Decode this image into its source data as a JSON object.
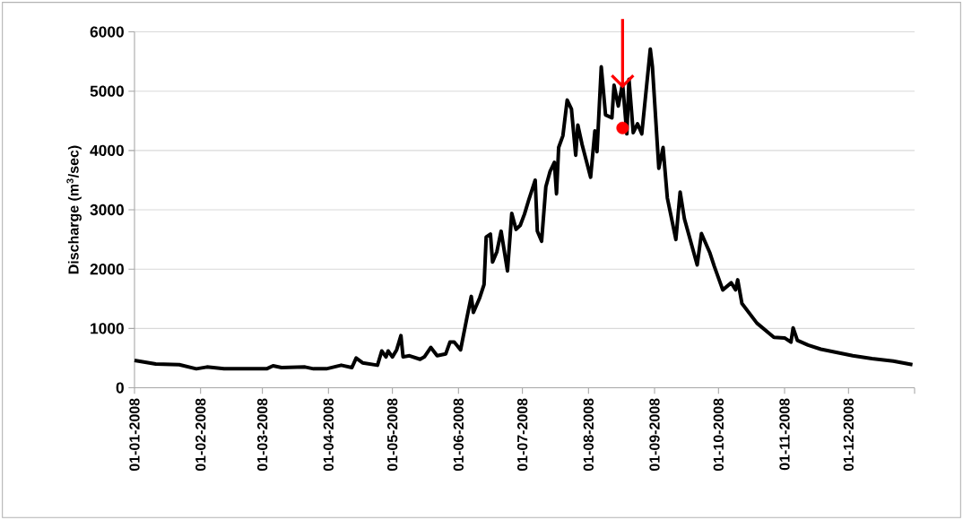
{
  "chart_data": {
    "type": "line",
    "ylabel": "Discharge (m$^{3}$/sec)",
    "xlim": [
      "2008-01-01",
      "2009-01-01"
    ],
    "xticks": [
      {
        "value": "2008-01-01",
        "label": "01-01-2008"
      },
      {
        "value": "2008-02-01",
        "label": "01-02-2008"
      },
      {
        "value": "2008-03-01",
        "label": "01-03-2008"
      },
      {
        "value": "2008-04-01",
        "label": "01-04-2008"
      },
      {
        "value": "2008-05-01",
        "label": "01-05-2008"
      },
      {
        "value": "2008-06-01",
        "label": "01-06-2008"
      },
      {
        "value": "2008-07-01",
        "label": "01-07-2008"
      },
      {
        "value": "2008-08-01",
        "label": "01-08-2008"
      },
      {
        "value": "2008-09-01",
        "label": "01-09-2008"
      },
      {
        "value": "2008-10-01",
        "label": "01-10-2008"
      },
      {
        "value": "2008-11-01",
        "label": "01-11-2008"
      },
      {
        "value": "2008-12-01",
        "label": "01-12-2008"
      },
      {
        "value": "2009-01-01",
        "label": null
      }
    ],
    "ylim": [
      0,
      6000
    ],
    "yticks": [
      0,
      1000,
      2000,
      3000,
      4000,
      5000,
      6000
    ],
    "grid": "y",
    "marker": "none",
    "line_style": "solid",
    "series": [
      {
        "color": "#000000",
        "x": [
          "2008-01-01",
          "2008-01-11",
          "2008-01-22",
          "2008-01-30",
          "2008-02-04",
          "2008-02-12",
          "2008-03-03",
          "2008-03-06",
          "2008-03-10",
          "2008-03-21",
          "2008-03-25",
          "2008-03-31",
          "2008-04-07",
          "2008-04-12",
          "2008-04-14",
          "2008-04-17",
          "2008-04-24",
          "2008-04-26",
          "2008-04-28",
          "2008-04-29",
          "2008-05-01",
          "2008-05-03",
          "2008-05-05",
          "2008-05-06",
          "2008-05-09",
          "2008-05-14",
          "2008-05-16",
          "2008-05-19",
          "2008-05-22",
          "2008-05-26",
          "2008-05-28",
          "2008-05-30",
          "2008-06-02",
          "2008-06-05",
          "2008-06-07",
          "2008-06-08",
          "2008-06-11",
          "2008-06-13",
          "2008-06-14",
          "2008-06-16",
          "2008-06-17",
          "2008-06-19",
          "2008-06-21",
          "2008-06-24",
          "2008-06-26",
          "2008-06-28",
          "2008-06-30",
          "2008-07-02",
          "2008-07-04",
          "2008-07-07",
          "2008-07-08",
          "2008-07-10",
          "2008-07-12",
          "2008-07-14",
          "2008-07-16",
          "2008-07-17",
          "2008-07-18",
          "2008-07-20",
          "2008-07-22",
          "2008-07-24",
          "2008-07-26",
          "2008-07-27",
          "2008-07-29",
          "2008-08-02",
          "2008-08-04",
          "2008-08-05",
          "2008-08-07",
          "2008-08-09",
          "2008-08-12",
          "2008-08-13",
          "2008-08-15",
          "2008-08-17",
          "2008-08-19",
          "2008-08-20",
          "2008-08-22",
          "2008-08-24",
          "2008-08-26",
          "2008-08-30",
          "2008-08-31",
          "2008-09-03",
          "2008-09-05",
          "2008-09-07",
          "2008-09-11",
          "2008-09-13",
          "2008-09-15",
          "2008-09-21",
          "2008-09-23",
          "2008-09-27",
          "2008-09-29",
          "2008-10-03",
          "2008-10-07",
          "2008-10-09",
          "2008-10-10",
          "2008-10-12",
          "2008-10-19",
          "2008-10-27",
          "2008-11-01",
          "2008-11-04",
          "2008-11-05",
          "2008-11-07",
          "2008-11-12",
          "2008-11-18",
          "2008-12-03",
          "2008-12-12",
          "2008-12-22",
          "2008-12-31"
        ],
        "values": [
          460,
          400,
          390,
          320,
          350,
          320,
          320,
          370,
          340,
          350,
          320,
          320,
          380,
          340,
          500,
          420,
          380,
          620,
          520,
          620,
          520,
          640,
          880,
          520,
          540,
          480,
          520,
          680,
          540,
          570,
          770,
          770,
          640,
          1190,
          1540,
          1270,
          1520,
          1740,
          2540,
          2590,
          2120,
          2290,
          2640,
          1970,
          2940,
          2670,
          2740,
          2930,
          3170,
          3500,
          2640,
          2470,
          3390,
          3650,
          3800,
          3270,
          4050,
          4250,
          4850,
          4700,
          3920,
          4430,
          4100,
          3550,
          4330,
          3980,
          5410,
          4600,
          4550,
          5100,
          4750,
          5130,
          4280,
          5200,
          4300,
          4450,
          4280,
          5710,
          5410,
          3700,
          4050,
          3200,
          2500,
          3300,
          2850,
          2070,
          2600,
          2270,
          2050,
          1650,
          1770,
          1650,
          1820,
          1420,
          1090,
          850,
          840,
          770,
          1010,
          800,
          720,
          650,
          540,
          490,
          450,
          390
        ]
      },
      {
        "type": "scatter",
        "color": "#ff0000",
        "marker": "circle",
        "x": [
          "2008-08-17"
        ],
        "values": [
          4380
        ]
      }
    ]
  }
}
